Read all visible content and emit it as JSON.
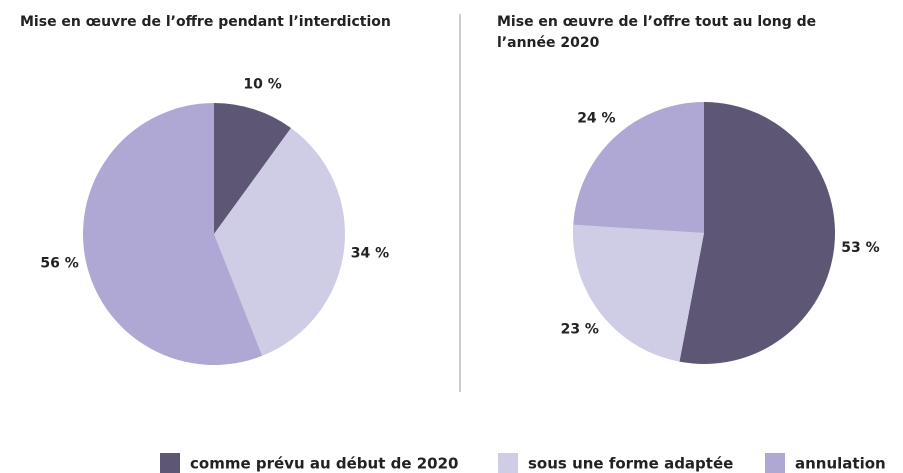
{
  "chart_data": [
    {
      "type": "pie",
      "title": "Mise en œuvre de l’offre pendant l’interdiction",
      "categories": [
        "comme prévu au début de 2020",
        "sous une forme adaptée",
        "annulation"
      ],
      "values": [
        10,
        34,
        56
      ],
      "value_labels": [
        "10 %",
        "34 %",
        "56 %"
      ],
      "colors": [
        "#5d5775",
        "#cfcce6",
        "#afa8d4"
      ],
      "legend": "bottom-right"
    },
    {
      "type": "pie",
      "title": "Mise en œuvre de l’offre tout au long de l’année 2020",
      "categories": [
        "comme prévu au début de 2020",
        "sous une forme adaptée",
        "annulation"
      ],
      "values": [
        53,
        23,
        24
      ],
      "value_labels": [
        "53 %",
        "23 %",
        "24 %"
      ],
      "colors": [
        "#5d5775",
        "#cfcce6",
        "#afa8d4"
      ],
      "legend": "bottom-right"
    }
  ]
}
